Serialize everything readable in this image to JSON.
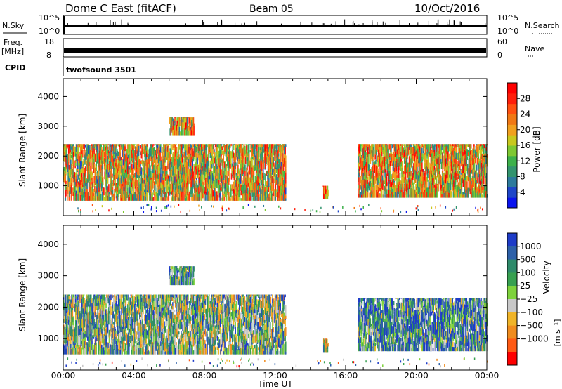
{
  "header": {
    "title": "Dome C East (fitACF)",
    "beam": "Beam 05",
    "date": "10/Oct/2016"
  },
  "strip_panels": {
    "nsky": {
      "label": "N.Sky",
      "right_label": "N.Search",
      "left_ticks": [
        "10^5",
        "10^0"
      ],
      "right_ticks": [
        "10^5",
        "10^0"
      ]
    },
    "freq": {
      "label": "Freq.",
      "unit": "[MHz]",
      "right_label": "Nave",
      "left_ticks": [
        "18",
        "8"
      ],
      "right_ticks": [
        "60",
        "0"
      ]
    },
    "cpid": {
      "label": "CPID",
      "program": "twofsound 3501"
    }
  },
  "chart_data": [
    {
      "type": "heatmap",
      "name": "power-panel",
      "ylabel": "Slant Range [km]",
      "ylim": [
        0,
        4600
      ],
      "yticks": [
        1000,
        2000,
        3000,
        4000
      ],
      "xlim": [
        0,
        24
      ],
      "xtick_labels": [
        "00:00",
        "04:00",
        "08:00",
        "12:00",
        "16:00",
        "20:00",
        "00:00"
      ],
      "colorbar": {
        "label": "Power [dB]",
        "ticks": [
          "4",
          "8",
          "12",
          "16",
          "20",
          "24",
          "28"
        ],
        "colors": [
          "#0a14ee",
          "#1e46c8",
          "#2d7a9c",
          "#33946e",
          "#3db04a",
          "#7ec832",
          "#c8c81e",
          "#f0a01e",
          "#f07814",
          "#ff5010",
          "#ff1e0a",
          "#ff0000"
        ]
      },
      "echo_regions": [
        {
          "t0": 0.0,
          "t1": 12.6,
          "r0": 500,
          "r1": 2400,
          "level": 0.55
        },
        {
          "t0": 6.0,
          "t1": 7.4,
          "r0": 2700,
          "r1": 3300,
          "level": 0.6
        },
        {
          "t0": 14.7,
          "t1": 15.0,
          "r0": 550,
          "r1": 1000,
          "level": 0.8
        },
        {
          "t0": 16.7,
          "t1": 24.0,
          "r0": 600,
          "r1": 2400,
          "level": 0.6
        }
      ]
    },
    {
      "type": "heatmap",
      "name": "velocity-panel",
      "ylabel": "Slant Range [km]",
      "ylim": [
        0,
        4600
      ],
      "yticks": [
        1000,
        2000,
        3000,
        4000
      ],
      "xlim": [
        0,
        24
      ],
      "xtick_labels": [
        "00:00",
        "04:00",
        "08:00",
        "12:00",
        "16:00",
        "20:00",
        "00:00"
      ],
      "xlabel": "Time UT",
      "colorbar": {
        "label": "Velocity",
        "unit": "[m s⁻¹]",
        "ticks": [
          "1000",
          "500",
          "100",
          "25",
          "−25",
          "−100",
          "−500",
          "−1000"
        ],
        "colors": [
          "#1e3cc8",
          "#2d60a8",
          "#2e8a6a",
          "#37a050",
          "#7ed23c",
          "#c8c8c8",
          "#f0b428",
          "#f08c1e",
          "#ff5a14",
          "#ff0000"
        ]
      },
      "echo_regions": [
        {
          "t0": 0.0,
          "t1": 12.6,
          "r0": 500,
          "r1": 2400,
          "level": 0.4
        },
        {
          "t0": 6.0,
          "t1": 7.4,
          "r0": 2700,
          "r1": 3300,
          "level": 0.3
        },
        {
          "t0": 14.7,
          "t1": 15.0,
          "r0": 550,
          "r1": 1000,
          "level": 0.5
        },
        {
          "t0": 16.7,
          "t1": 24.0,
          "r0": 600,
          "r1": 2300,
          "level": 0.25
        }
      ]
    }
  ]
}
